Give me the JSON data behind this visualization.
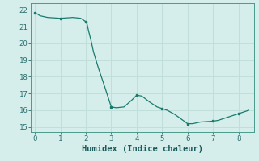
{
  "x": [
    0,
    0.1,
    0.2,
    0.5,
    1.0,
    1.5,
    1.8,
    2.0,
    2.05,
    2.1,
    2.2,
    2.3,
    2.5,
    2.7,
    3.0,
    3.2,
    3.5,
    3.8,
    4.0,
    4.2,
    4.5,
    4.8,
    5.0,
    5.2,
    5.5,
    6.0,
    6.2,
    6.5,
    7.0,
    7.2,
    7.5,
    7.8,
    8.0,
    8.2,
    8.4
  ],
  "y": [
    21.8,
    21.75,
    21.65,
    21.55,
    21.5,
    21.55,
    21.5,
    21.3,
    21.15,
    20.8,
    20.2,
    19.5,
    18.5,
    17.6,
    16.2,
    16.15,
    16.2,
    16.6,
    16.9,
    16.85,
    16.5,
    16.2,
    16.1,
    16.0,
    15.75,
    15.2,
    15.2,
    15.3,
    15.35,
    15.4,
    15.55,
    15.7,
    15.8,
    15.9,
    16.0
  ],
  "markers_x": [
    0,
    1,
    2,
    3,
    4,
    5,
    6,
    7,
    8
  ],
  "markers_y": [
    21.8,
    21.5,
    21.3,
    16.2,
    16.9,
    16.1,
    15.2,
    15.35,
    15.8
  ],
  "line_color": "#1a7a6e",
  "marker_color": "#1a7a6e",
  "bg_color": "#d5eeeb",
  "grid_color": "#c0deda",
  "xlabel": "Humidex (Indice chaleur)",
  "xlim": [
    -0.15,
    8.6
  ],
  "ylim": [
    14.7,
    22.4
  ],
  "xticks": [
    0,
    1,
    2,
    3,
    4,
    5,
    6,
    7,
    8
  ],
  "yticks": [
    15,
    16,
    17,
    18,
    19,
    20,
    21,
    22
  ],
  "tick_fontsize": 6.5,
  "label_fontsize": 7.5
}
